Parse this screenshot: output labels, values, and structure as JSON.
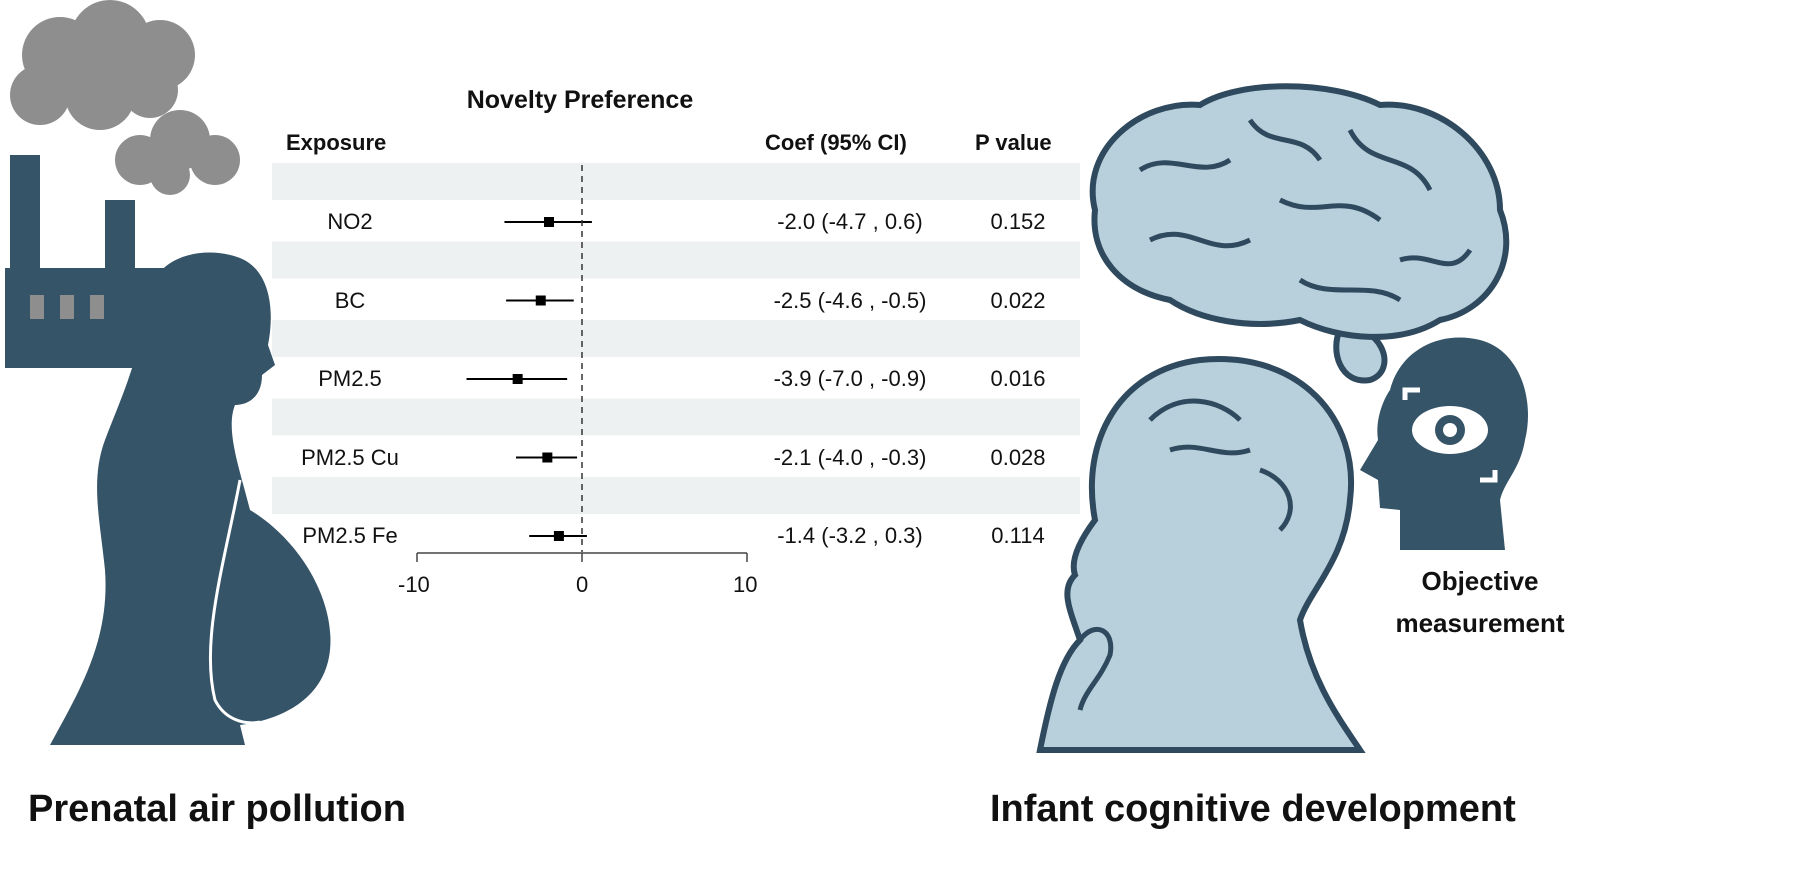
{
  "captions": {
    "left": "Prenatal air pollution",
    "right": "Infant cognitive development",
    "measurement_line1": "Objective",
    "measurement_line2": "measurement"
  },
  "colors": {
    "silhouette": "#355468",
    "brain_fill": "#b8cfdc",
    "smoke": "#8e8e8e",
    "band": "#eef1f1"
  },
  "chart_data": {
    "type": "forest",
    "title": "Novelty Preference",
    "columns": {
      "exposure": "Exposure",
      "coef": "Coef (95% CI)",
      "p": "P value"
    },
    "xlim": [
      -10,
      10
    ],
    "xticks": [
      "-10",
      "0",
      "10"
    ],
    "reference_line": 0,
    "rows": [
      {
        "label": "NO2",
        "coef": -2.0,
        "lo": -4.7,
        "hi": 0.6,
        "text": "-2.0 (-4.7 , 0.6)",
        "p": "0.152"
      },
      {
        "label": "BC",
        "coef": -2.5,
        "lo": -4.6,
        "hi": -0.5,
        "text": "-2.5 (-4.6 , -0.5)",
        "p": "0.022"
      },
      {
        "label": "PM2.5",
        "coef": -3.9,
        "lo": -7.0,
        "hi": -0.9,
        "text": "-3.9 (-7.0 , -0.9)",
        "p": "0.016"
      },
      {
        "label": "PM2.5 Cu",
        "coef": -2.1,
        "lo": -4.0,
        "hi": -0.3,
        "text": "-2.1 (-4.0 , -0.3)",
        "p": "0.028"
      },
      {
        "label": "PM2.5 Fe",
        "coef": -1.4,
        "lo": -3.2,
        "hi": 0.3,
        "text": "-1.4 (-3.2 , 0.3)",
        "p": "0.114"
      }
    ]
  }
}
